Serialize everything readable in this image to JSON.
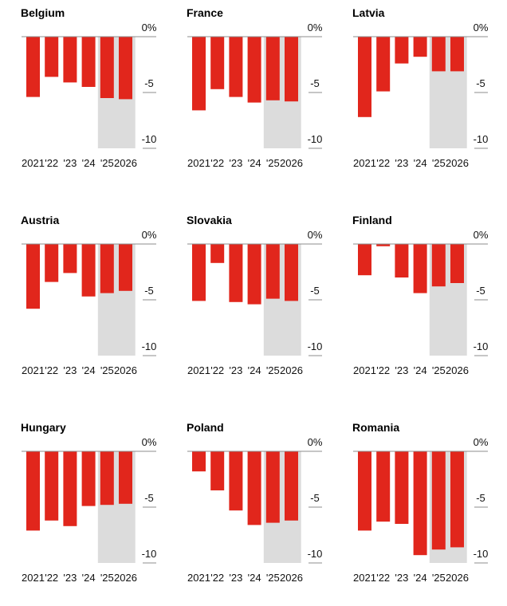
{
  "chart_data": [
    {
      "type": "bar",
      "title": "Belgium",
      "categories": [
        "2021",
        "'22",
        "'23",
        "'24",
        "'25",
        "2026"
      ],
      "values": [
        -5.4,
        -3.6,
        -4.1,
        -4.5,
        -5.5,
        -5.6
      ],
      "forecast_from": "'25",
      "ylim": [
        -10,
        0
      ],
      "yticks": [
        "0%",
        "-5",
        "-10"
      ],
      "grid": true
    },
    {
      "type": "bar",
      "title": "France",
      "categories": [
        "2021",
        "'22",
        "'23",
        "'24",
        "'25",
        "2026"
      ],
      "values": [
        -6.6,
        -4.7,
        -5.4,
        -5.9,
        -5.7,
        -5.8
      ],
      "forecast_from": "'25",
      "ylim": [
        -10,
        0
      ],
      "yticks": [
        "0%",
        "-5",
        "-10"
      ],
      "grid": true
    },
    {
      "type": "bar",
      "title": "Latvia",
      "categories": [
        "2021",
        "'22",
        "'23",
        "'24",
        "'25",
        "2026"
      ],
      "values": [
        -7.2,
        -4.9,
        -2.4,
        -1.8,
        -3.1,
        -3.1
      ],
      "forecast_from": "'25",
      "ylim": [
        -10,
        0
      ],
      "yticks": [
        "0%",
        "-5",
        "-10"
      ],
      "grid": true
    },
    {
      "type": "bar",
      "title": "Austria",
      "categories": [
        "2021",
        "'22",
        "'23",
        "'24",
        "'25",
        "2026"
      ],
      "values": [
        -5.8,
        -3.4,
        -2.6,
        -4.7,
        -4.4,
        -4.2
      ],
      "forecast_from": "'25",
      "ylim": [
        -10,
        0
      ],
      "yticks": [
        "0%",
        "-5",
        "-10"
      ],
      "grid": true
    },
    {
      "type": "bar",
      "title": "Slovakia",
      "categories": [
        "2021",
        "'22",
        "'23",
        "'24",
        "'25",
        "2026"
      ],
      "values": [
        -5.1,
        -1.7,
        -5.2,
        -5.4,
        -4.9,
        -5.1
      ],
      "forecast_from": "'25",
      "ylim": [
        -10,
        0
      ],
      "yticks": [
        "0%",
        "-5",
        "-10"
      ],
      "grid": true
    },
    {
      "type": "bar",
      "title": "Finland",
      "categories": [
        "2021",
        "'22",
        "'23",
        "'24",
        "'25",
        "2026"
      ],
      "values": [
        -2.8,
        -0.2,
        -3.0,
        -4.4,
        -3.8,
        -3.5
      ],
      "forecast_from": "'25",
      "ylim": [
        -10,
        0
      ],
      "yticks": [
        "0%",
        "-5",
        "-10"
      ],
      "grid": true
    },
    {
      "type": "bar",
      "title": "Hungary",
      "categories": [
        "2021",
        "'22",
        "'23",
        "'24",
        "'25",
        "2026"
      ],
      "values": [
        -7.1,
        -6.2,
        -6.7,
        -4.9,
        -4.8,
        -4.7
      ],
      "forecast_from": "'25",
      "ylim": [
        -10,
        0
      ],
      "yticks": [
        "0%",
        "-5",
        "-10"
      ],
      "grid": true
    },
    {
      "type": "bar",
      "title": "Poland",
      "categories": [
        "2021",
        "'22",
        "'23",
        "'24",
        "'25",
        "2026"
      ],
      "values": [
        -1.8,
        -3.5,
        -5.3,
        -6.6,
        -6.4,
        -6.2
      ],
      "forecast_from": "'25",
      "ylim": [
        -10,
        0
      ],
      "yticks": [
        "0%",
        "-5",
        "-10"
      ],
      "grid": true
    },
    {
      "type": "bar",
      "title": "Romania",
      "categories": [
        "2021",
        "'22",
        "'23",
        "'24",
        "'25",
        "2026"
      ],
      "values": [
        -7.1,
        -6.3,
        -6.5,
        -9.3,
        -8.8,
        -8.6
      ],
      "forecast_from": "'25",
      "ylim": [
        -10,
        0
      ],
      "yticks": [
        "0%",
        "-5",
        "-10"
      ],
      "grid": true
    }
  ],
  "colors": {
    "bar": "#e1261c",
    "forecast_band": "#dcdcdc",
    "gridline": "#8c8c8c",
    "text": "#111111"
  }
}
